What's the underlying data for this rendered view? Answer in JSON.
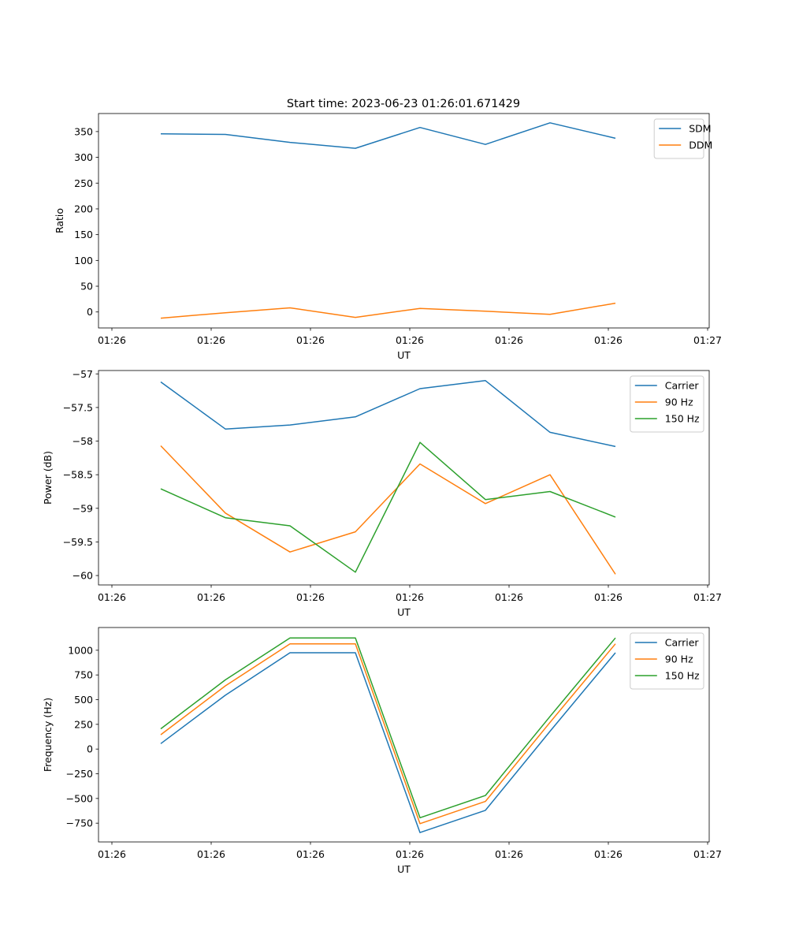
{
  "figure": {
    "title": "Start time: 2023-06-23 01:26:01.671429"
  },
  "chart_data": [
    {
      "type": "line",
      "title": "Start time: 2023-06-23 01:26:01.671429",
      "xlabel": "UT",
      "ylabel": "Ratio",
      "x_tick_labels": [
        "01:26",
        "01:26",
        "01:26",
        "01:26",
        "01:26",
        "01:26",
        "01:26"
      ],
      "x_tick_edge_label": "01:27",
      "ylim": [
        -31,
        385
      ],
      "yticks": [
        0,
        50,
        100,
        150,
        200,
        250,
        300,
        350
      ],
      "legend_position": "top-right",
      "series": [
        {
          "name": "SDM",
          "color": "#1f77b4",
          "values": [
            345.5,
            344.5,
            329,
            317.5,
            358,
            325,
            367,
            337
          ]
        },
        {
          "name": "DDM",
          "color": "#ff7f0e",
          "values": [
            -12,
            -1.5,
            8,
            -10.5,
            7,
            1.5,
            -4.5,
            17
          ]
        }
      ]
    },
    {
      "type": "line",
      "title": "",
      "xlabel": "UT",
      "ylabel": "Power (dB)",
      "x_tick_labels": [
        "01:26",
        "01:26",
        "01:26",
        "01:26",
        "01:26",
        "01:26",
        "01:26"
      ],
      "x_tick_edge_label": "01:27",
      "ylim": [
        -60.14,
        -56.95
      ],
      "yticks": [
        -60.0,
        -59.5,
        -59.0,
        -58.5,
        -58.0,
        -57.5,
        -57.0
      ],
      "legend_position": "top-right",
      "series": [
        {
          "name": "Carrier",
          "color": "#1f77b4",
          "values": [
            -57.12,
            -57.82,
            -57.76,
            -57.64,
            -57.22,
            -57.1,
            -57.87,
            -58.08
          ]
        },
        {
          "name": "90 Hz",
          "color": "#ff7f0e",
          "values": [
            -58.07,
            -59.07,
            -59.65,
            -59.35,
            -58.34,
            -58.93,
            -58.5,
            -59.98
          ]
        },
        {
          "name": "150 Hz",
          "color": "#2ca02c",
          "values": [
            -58.71,
            -59.14,
            -59.26,
            -59.95,
            -58.02,
            -58.87,
            -58.75,
            -59.13
          ]
        }
      ]
    },
    {
      "type": "line",
      "title": "",
      "xlabel": "UT",
      "ylabel": "Frequency (Hz)",
      "x_tick_labels": [
        "01:26",
        "01:26",
        "01:26",
        "01:26",
        "01:26",
        "01:26",
        "01:26"
      ],
      "x_tick_edge_label": "01:27",
      "ylim": [
        -940,
        1230
      ],
      "yticks": [
        -750,
        -500,
        -250,
        0,
        250,
        500,
        750,
        1000
      ],
      "legend_position": "top-right",
      "series": [
        {
          "name": "Carrier",
          "color": "#1f77b4",
          "values": [
            55,
            545,
            975,
            975,
            -845,
            -620,
            180,
            975
          ]
        },
        {
          "name": "90 Hz",
          "color": "#ff7f0e",
          "values": [
            145,
            640,
            1065,
            1065,
            -755,
            -530,
            270,
            1065
          ]
        },
        {
          "name": "150 Hz",
          "color": "#2ca02c",
          "values": [
            205,
            700,
            1125,
            1125,
            -695,
            -470,
            330,
            1125
          ]
        }
      ]
    }
  ]
}
